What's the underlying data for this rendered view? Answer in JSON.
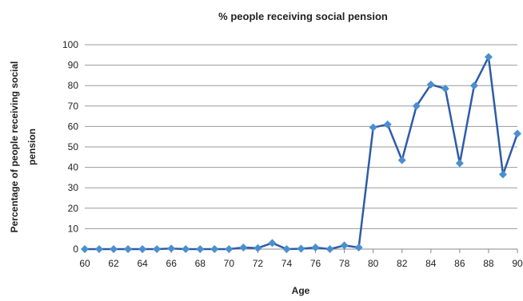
{
  "chart_data": {
    "type": "line",
    "title": "% people receiving social pension",
    "xlabel": "Age",
    "ylabel": "Percentage of people receiving social pension",
    "ylabel_lines": [
      "Percentage of people receiving  social",
      "pension"
    ],
    "xlim": [
      60,
      90
    ],
    "ylim": [
      0,
      100
    ],
    "x_ticks": [
      60,
      62,
      64,
      66,
      68,
      70,
      72,
      74,
      76,
      78,
      80,
      82,
      84,
      86,
      88,
      90
    ],
    "y_ticks": [
      0,
      10,
      20,
      30,
      40,
      50,
      60,
      70,
      80,
      90,
      100
    ],
    "grid": "horizontal",
    "legend": "none",
    "series": [
      {
        "color": "#2E5CA8",
        "marker": "diamond",
        "marker_color": "#4A90D0",
        "x": [
          60,
          61,
          62,
          63,
          64,
          65,
          66,
          67,
          68,
          69,
          70,
          71,
          72,
          73,
          74,
          75,
          76,
          77,
          78,
          79,
          80,
          81,
          82,
          83,
          84,
          85,
          86,
          87,
          88,
          89,
          90
        ],
        "values": [
          0,
          0,
          0,
          0,
          0,
          0,
          0.3,
          0,
          0,
          0,
          0,
          0.8,
          0.5,
          3,
          0,
          0.2,
          0.8,
          0,
          1.8,
          0.8,
          59.5,
          61,
          43.5,
          70,
          80.5,
          78.5,
          42,
          80,
          94,
          36.5,
          56.5
        ]
      }
    ]
  }
}
